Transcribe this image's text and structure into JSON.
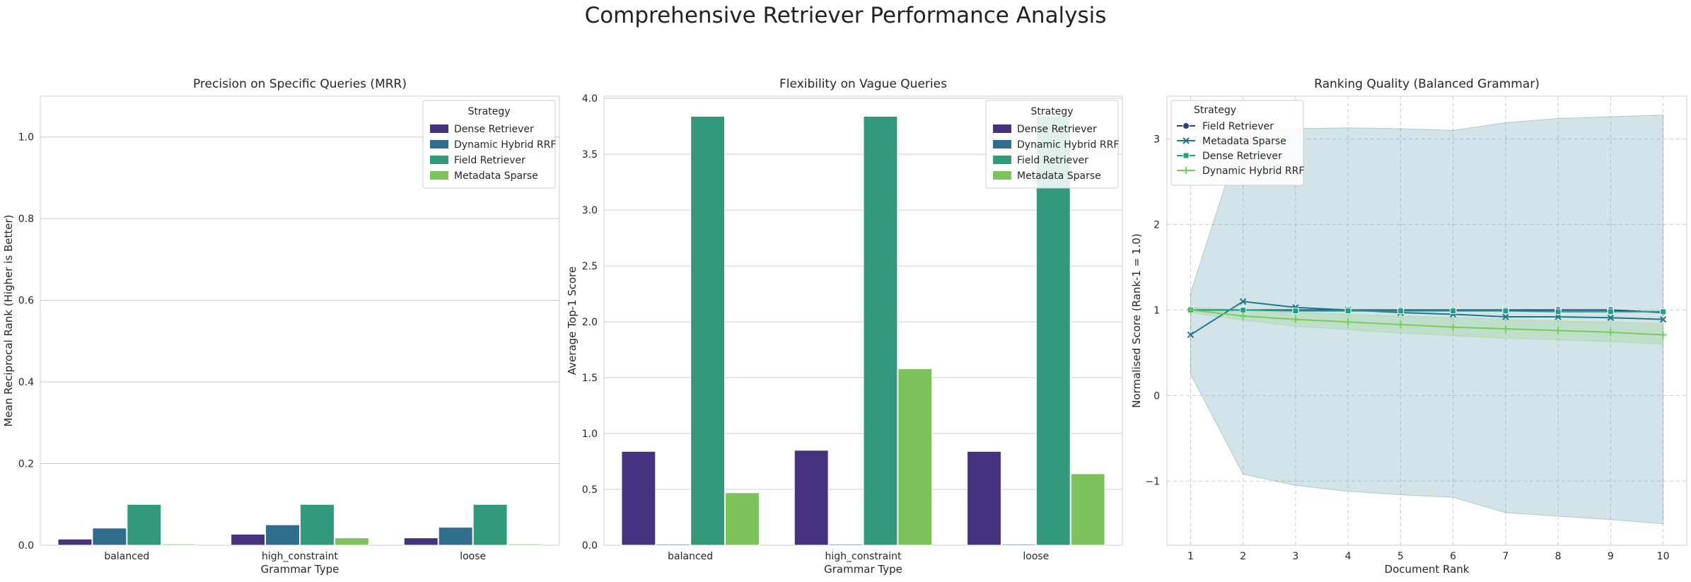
{
  "figure": {
    "title": "Comprehensive Retriever Performance Analysis"
  },
  "chart_data": [
    {
      "type": "bar",
      "title": "Precision on Specific Queries (MRR)",
      "xlabel": "Grammar Type",
      "ylabel": "Mean Reciprocal Rank (Higher is Better)",
      "ylim": [
        0,
        1.1
      ],
      "yticks": [
        "0.0",
        "0.2",
        "0.4",
        "0.6",
        "0.8",
        "1.0"
      ],
      "ytick_values": [
        0,
        0.2,
        0.4,
        0.6,
        0.8,
        1.0
      ],
      "grid": true,
      "categories": [
        "balanced",
        "high_constraint",
        "loose"
      ],
      "legend": {
        "title": "Strategy",
        "placement": "top-right"
      },
      "series": [
        {
          "name": "Dense Retriever",
          "color": "#46327e",
          "values": [
            0.015,
            0.027,
            0.018
          ]
        },
        {
          "name": "Dynamic Hybrid RRF",
          "color": "#2f6c8e",
          "values": [
            0.042,
            0.05,
            0.044
          ]
        },
        {
          "name": "Field Retriever",
          "color": "#32997d",
          "values": [
            0.1,
            0.1,
            0.1
          ]
        },
        {
          "name": "Metadata Sparse",
          "color": "#7cc35c",
          "values": [
            0.003,
            0.018,
            0.003
          ]
        }
      ]
    },
    {
      "type": "bar",
      "title": "Flexibility on Vague Queries",
      "xlabel": "Grammar Type",
      "ylabel": "Average Top-1 Score",
      "ylim": [
        0,
        4.02
      ],
      "yticks": [
        "0.0",
        "0.5",
        "1.0",
        "1.5",
        "2.0",
        "2.5",
        "3.0",
        "3.5",
        "4.0"
      ],
      "ytick_values": [
        0,
        0.5,
        1.0,
        1.5,
        2.0,
        2.5,
        3.0,
        3.5,
        4.0
      ],
      "grid": true,
      "categories": [
        "balanced",
        "high_constraint",
        "loose"
      ],
      "legend": {
        "title": "Strategy",
        "placement": "top-right"
      },
      "series": [
        {
          "name": "Dense Retriever",
          "color": "#46327e",
          "values": [
            0.84,
            0.85,
            0.84
          ]
        },
        {
          "name": "Dynamic Hybrid RRF",
          "color": "#2f6c8e",
          "values": [
            0.01,
            0.01,
            0.01
          ]
        },
        {
          "name": "Field Retriever",
          "color": "#32997d",
          "values": [
            3.84,
            3.84,
            3.84
          ]
        },
        {
          "name": "Metadata Sparse",
          "color": "#7cc35c",
          "values": [
            0.47,
            1.58,
            0.64
          ]
        }
      ]
    },
    {
      "type": "line",
      "title": "Ranking Quality (Balanced Grammar)",
      "xlabel": "Document Rank",
      "ylabel": "Normalised Score (Rank-1 = 1.0)",
      "x": [
        1,
        2,
        3,
        4,
        5,
        6,
        7,
        8,
        9,
        10
      ],
      "xticks": [
        "1",
        "2",
        "3",
        "4",
        "5",
        "6",
        "7",
        "8",
        "9",
        "10"
      ],
      "ylim": [
        -1.75,
        3.5
      ],
      "yticks": [
        "−1",
        "0",
        "1",
        "2",
        "3"
      ],
      "ytick_values": [
        -1,
        0,
        1,
        2,
        3
      ],
      "grid": true,
      "grid_style": "dashed",
      "legend": {
        "title": "Strategy",
        "placement": "top-left"
      },
      "series": [
        {
          "name": "Field Retriever",
          "color": "#2a3f88",
          "marker": "o",
          "values": [
            1.0,
            1.0,
            1.0,
            1.0,
            1.0,
            1.0,
            1.0,
            1.0,
            1.0,
            0.97
          ]
        },
        {
          "name": "Metadata Sparse",
          "color": "#23778c",
          "marker": "x",
          "values": [
            0.71,
            1.1,
            1.03,
            1.0,
            0.97,
            0.95,
            0.92,
            0.92,
            0.91,
            0.89
          ],
          "band_low": [
            0.25,
            -0.92,
            -1.05,
            -1.12,
            -1.16,
            -1.19,
            -1.37,
            -1.41,
            -1.45,
            -1.5
          ],
          "band_high": [
            1.2,
            3.1,
            3.12,
            3.13,
            3.12,
            3.1,
            3.19,
            3.24,
            3.26,
            3.28
          ]
        },
        {
          "name": "Dense Retriever",
          "color": "#1fa187",
          "marker": "s",
          "values": [
            1.0,
            1.0,
            0.99,
            0.99,
            0.99,
            0.99,
            0.99,
            0.98,
            0.98,
            0.98
          ]
        },
        {
          "name": "Dynamic Hybrid RRF",
          "color": "#73cf56",
          "marker": "+",
          "values": [
            1.0,
            0.93,
            0.89,
            0.86,
            0.83,
            0.8,
            0.78,
            0.76,
            0.74,
            0.71
          ],
          "band_low": [
            0.97,
            0.88,
            0.81,
            0.77,
            0.73,
            0.7,
            0.67,
            0.65,
            0.63,
            0.6
          ],
          "band_high": [
            1.03,
            1.0,
            0.97,
            0.95,
            0.93,
            0.91,
            0.89,
            0.87,
            0.86,
            0.84
          ]
        }
      ]
    }
  ]
}
